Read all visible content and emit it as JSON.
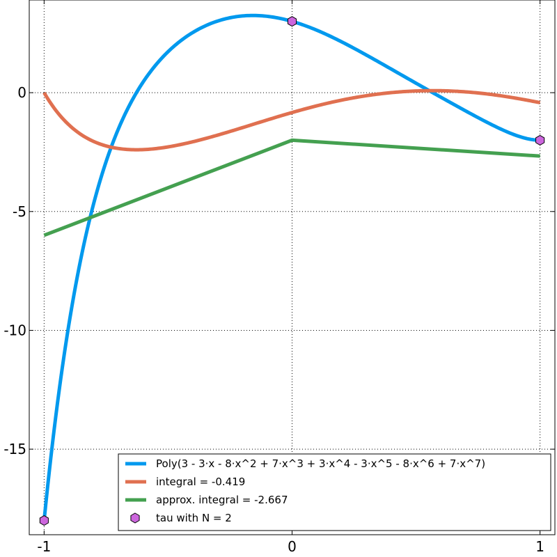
{
  "chart_data": {
    "type": "line",
    "xlim": [
      -1.06,
      1.06
    ],
    "ylim": [
      -18.6,
      3.9
    ],
    "grid": true,
    "legend_placement": "bottom-right",
    "xticks": [
      -1,
      0,
      1
    ],
    "xtick_labels": [
      "-1",
      "0",
      "1"
    ],
    "yticks": [
      0,
      -5,
      -10,
      -15
    ],
    "ytick_labels": [
      "0",
      "-5",
      "-10",
      "-15"
    ],
    "polynomial_coeffs": [
      3,
      -3,
      -8,
      7,
      3,
      -3,
      -8,
      7
    ],
    "series": [
      {
        "name": "Poly(3 - 3·x - 8·x^2 + 7·x^3 + 3·x^4 - 3·x^5 - 8·x^6 + 7·x^7)",
        "color": "#0099ee",
        "kind": "polynomial",
        "x_range": [
          -1,
          1
        ]
      },
      {
        "name": "integral = -0.419",
        "color": "#e07050",
        "kind": "antiderivative",
        "x_range": [
          -1,
          1
        ]
      },
      {
        "name": "approx. integral = -2.667",
        "color": "#44a050",
        "kind": "piecewise",
        "x": [
          -1,
          0,
          1
        ],
        "y": [
          -6,
          -2,
          -2.667
        ]
      },
      {
        "name": "tau with N = 2",
        "color": "#cc66dd",
        "kind": "markers",
        "x": [
          -1,
          0,
          1
        ],
        "y": [
          -18,
          3,
          -2
        ]
      }
    ]
  }
}
